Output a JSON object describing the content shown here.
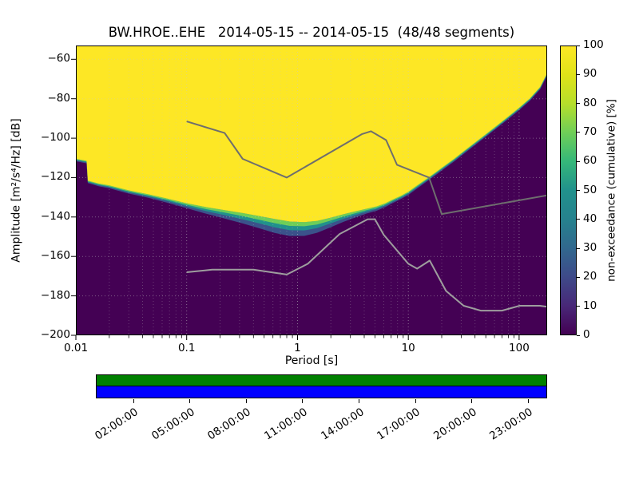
{
  "chart_data": {
    "type": "heatmap",
    "title": "BW.HROE..EHE   2014-05-15 -- 2014-05-15  (48/48 segments)",
    "xlabel": "Period [s]",
    "ylabel": "Amplitude [m²/s⁴/Hz] [dB]",
    "colorbar_label": "non-exceedance (cumulative) [%]",
    "x_scale": "log",
    "xlim": [
      0.01,
      179
    ],
    "ylim_db": [
      -200,
      -53
    ],
    "xtick_values": [
      0.01,
      0.1,
      1,
      10,
      100
    ],
    "xtick_labels": [
      "0.01",
      "0.1",
      "1",
      "10",
      "100"
    ],
    "ytick_values": [
      -60,
      -80,
      -100,
      -120,
      -140,
      -160,
      -180,
      -200
    ],
    "ytick_labels": [
      "−60",
      "−80",
      "−100",
      "−120",
      "−140",
      "−160",
      "−180",
      "−200"
    ],
    "colorbar_tick_values": [
      0,
      10,
      20,
      30,
      40,
      50,
      60,
      70,
      80,
      90,
      100
    ],
    "colormap": "viridis",
    "viridis_stops": [
      "#440154",
      "#482878",
      "#3e4a89",
      "#31688e",
      "#26828e",
      "#21918c",
      "#35b779",
      "#6ece58",
      "#b5de2b",
      "#dfe318",
      "#fde725"
    ],
    "colors": {
      "non_exceedance_100": "#fde725",
      "non_exceedance_0": "#440154",
      "band_inner": "#6ece58",
      "band_mid": "#21918c",
      "band_outer": "#3b528b",
      "nhnm_line": "#6e6e6e",
      "nlnm_line": "#9e9e9e",
      "grid": "#c8c8c8"
    },
    "non_exceedance_boundary": [
      [
        0.01,
        -110.5
      ],
      [
        0.0125,
        -111.5
      ],
      [
        0.0128,
        -121.5
      ],
      [
        0.016,
        -123
      ],
      [
        0.02,
        -124
      ],
      [
        0.03,
        -126.5
      ],
      [
        0.045,
        -128.5
      ],
      [
        0.065,
        -130.5
      ],
      [
        0.1,
        -133
      ],
      [
        0.15,
        -135
      ],
      [
        0.22,
        -136.5
      ],
      [
        0.32,
        -138
      ],
      [
        0.45,
        -139.5
      ],
      [
        0.62,
        -141
      ],
      [
        0.85,
        -142.3
      ],
      [
        1.15,
        -142.6
      ],
      [
        1.5,
        -142
      ],
      [
        2,
        -140.3
      ],
      [
        2.6,
        -138.6
      ],
      [
        3.3,
        -137.2
      ],
      [
        4.2,
        -135.8
      ],
      [
        5.2,
        -134.6
      ],
      [
        6.2,
        -133
      ],
      [
        7.2,
        -131.2
      ],
      [
        8.6,
        -129.2
      ],
      [
        10,
        -127.2
      ],
      [
        12,
        -124
      ],
      [
        14.5,
        -120.8
      ],
      [
        17.5,
        -117.5
      ],
      [
        21,
        -114.2
      ],
      [
        26,
        -110.4
      ],
      [
        32,
        -106.4
      ],
      [
        40,
        -102.2
      ],
      [
        50,
        -98
      ],
      [
        63,
        -93.6
      ],
      [
        80,
        -89
      ],
      [
        100,
        -84.6
      ],
      [
        125,
        -79.8
      ],
      [
        155,
        -74
      ],
      [
        179,
        -67
      ]
    ],
    "transition_band_db": [
      [
        0.01,
        1.2
      ],
      [
        0.05,
        1.8
      ],
      [
        0.1,
        2.5
      ],
      [
        0.2,
        4
      ],
      [
        0.35,
        5.5
      ],
      [
        0.6,
        7
      ],
      [
        1,
        7.5
      ],
      [
        1.5,
        6
      ],
      [
        2.5,
        4
      ],
      [
        4,
        2.5
      ],
      [
        7,
        1.8
      ],
      [
        15,
        1.4
      ],
      [
        179,
        1.2
      ]
    ],
    "noise_models": {
      "nhnm": [
        [
          0.1,
          -91.5
        ],
        [
          0.22,
          -97.4
        ],
        [
          0.32,
          -110.5
        ],
        [
          0.8,
          -120
        ],
        [
          3.8,
          -98
        ],
        [
          4.6,
          -96.5
        ],
        [
          6.3,
          -101
        ],
        [
          7.9,
          -113.5
        ],
        [
          15.4,
          -120
        ],
        [
          20,
          -138.5
        ],
        [
          179,
          -129
        ]
      ],
      "nlnm": [
        [
          0.1,
          -168
        ],
        [
          0.17,
          -166.7
        ],
        [
          0.4,
          -166.7
        ],
        [
          0.8,
          -169.2
        ],
        [
          1.24,
          -163.7
        ],
        [
          2.4,
          -148.6
        ],
        [
          4.3,
          -141.1
        ],
        [
          5,
          -141.1
        ],
        [
          6,
          -149
        ],
        [
          10,
          -163.7
        ],
        [
          12,
          -166.2
        ],
        [
          15.6,
          -162.1
        ],
        [
          21.9,
          -177.5
        ],
        [
          31.6,
          -185
        ],
        [
          45,
          -187.5
        ],
        [
          70,
          -187.5
        ],
        [
          101,
          -185
        ],
        [
          154,
          -185
        ],
        [
          179,
          -185.5
        ]
      ]
    },
    "coverage_bar": {
      "row_colors": [
        "#008000",
        "#0000ff"
      ],
      "tick_labels": [
        "02:00:00",
        "05:00:00",
        "08:00:00",
        "11:00:00",
        "14:00:00",
        "17:00:00",
        "20:00:00",
        "23:00:00"
      ]
    }
  }
}
